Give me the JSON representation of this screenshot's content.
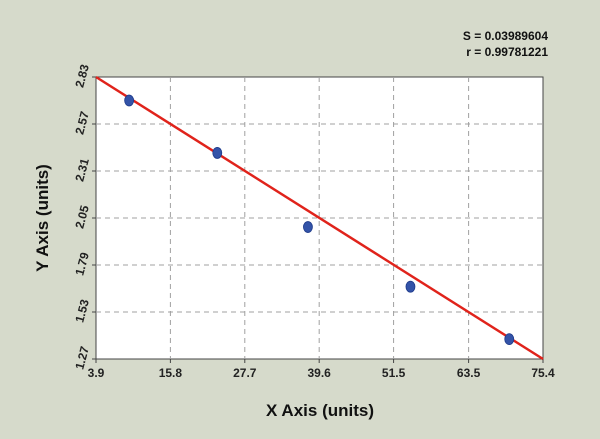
{
  "chart_data": {
    "type": "scatter",
    "title": "",
    "xlabel": "X Axis (units)",
    "ylabel": "Y Axis (units)",
    "xlim": [
      3.9,
      75.4
    ],
    "ylim": [
      1.27,
      2.83
    ],
    "x_ticks": [
      "3.9",
      "15.8",
      "27.7",
      "39.6",
      "51.5",
      "63.5",
      "75.4"
    ],
    "y_ticks": [
      "1.27",
      "1.53",
      "1.79",
      "2.05",
      "2.31",
      "2.57",
      "2.83"
    ],
    "grid": true,
    "series": [
      {
        "points": [
          {
            "x": 9.2,
            "y": 2.7
          },
          {
            "x": 23.3,
            "y": 2.41
          },
          {
            "x": 37.8,
            "y": 2.0
          },
          {
            "x": 54.2,
            "y": 1.67
          },
          {
            "x": 70.0,
            "y": 1.38
          }
        ]
      }
    ],
    "fit_line": {
      "x": [
        3.9,
        75.4
      ],
      "y": [
        2.83,
        1.27
      ]
    },
    "annotations": {
      "s": "S = 0.03989604",
      "r": "r = 0.99781221"
    },
    "colors": {
      "background": "#d6dacb",
      "plot_area": "#ffffff",
      "points": "#3353a8",
      "fit_line": "#e0231b",
      "grid": "#a0a0a0"
    }
  }
}
